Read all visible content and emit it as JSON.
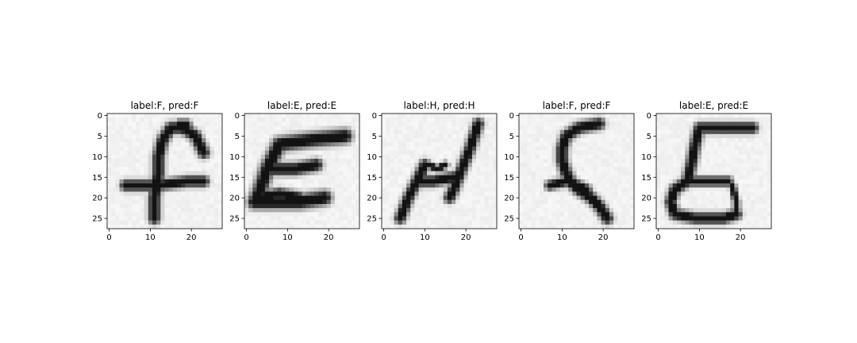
{
  "chart_data": [
    {
      "type": "heatmap",
      "title": "label:F, pred:F",
      "label": "F",
      "pred": "F",
      "xticks": [
        0,
        10,
        20
      ],
      "yticks": [
        0,
        5,
        10,
        15,
        20,
        25
      ],
      "xlim": [
        -0.5,
        27.5
      ],
      "ylim": [
        27.5,
        -0.5
      ],
      "colormap": "gray_r",
      "strokes": [
        {
          "points": [
            [
              4,
              17
            ],
            [
              12,
              17
            ],
            [
              19,
              16
            ],
            [
              23,
              16
            ]
          ],
          "width": 1.6
        },
        {
          "points": [
            [
              11,
              25
            ],
            [
              11,
              20
            ],
            [
              12,
              14
            ],
            [
              12,
              10
            ],
            [
              13,
              6
            ],
            [
              15,
              3
            ],
            [
              18,
              3
            ],
            [
              21,
              5
            ],
            [
              23,
              9
            ]
          ],
          "width": 1.7
        },
        {
          "points": [
            [
              17,
              2
            ],
            [
              19,
              2
            ]
          ],
          "width": 1.2
        }
      ]
    },
    {
      "type": "heatmap",
      "title": "label:E, pred:E",
      "label": "E",
      "pred": "E",
      "xticks": [
        0,
        10,
        20
      ],
      "yticks": [
        0,
        5,
        10,
        15,
        20,
        25
      ],
      "xlim": [
        -0.5,
        27.5
      ],
      "ylim": [
        27.5,
        -0.5
      ],
      "colormap": "gray_r",
      "strokes": [
        {
          "points": [
            [
              24,
              5
            ],
            [
              15,
              6
            ],
            [
              8,
              7
            ],
            [
              5,
              13
            ],
            [
              3,
              19
            ],
            [
              2,
              21
            ],
            [
              6,
              21
            ],
            [
              13,
              21
            ],
            [
              19,
              20
            ]
          ],
          "width": 2.1
        },
        {
          "points": [
            [
              6,
              13
            ],
            [
              12,
              13
            ],
            [
              17,
              12
            ]
          ],
          "width": 1.8
        },
        {
          "points": [
            [
              3,
              20
            ],
            [
              8,
              19
            ],
            [
              13,
              20
            ]
          ],
          "width": 1.6
        }
      ]
    },
    {
      "type": "heatmap",
      "title": "label:H, pred:H",
      "label": "H",
      "pred": "H",
      "xticks": [
        0,
        10,
        20
      ],
      "yticks": [
        0,
        5,
        10,
        15,
        20,
        25
      ],
      "xlim": [
        -0.5,
        27.5
      ],
      "ylim": [
        27.5,
        -0.5
      ],
      "colormap": "gray_r",
      "strokes": [
        {
          "points": [
            [
              4,
              25
            ],
            [
              6,
              20
            ],
            [
              8,
              16
            ],
            [
              10,
              12
            ]
          ],
          "width": 1.6
        },
        {
          "points": [
            [
              8,
              16
            ],
            [
              12,
              16
            ],
            [
              17,
              15
            ]
          ],
          "width": 1.6
        },
        {
          "points": [
            [
              23,
              2
            ],
            [
              21,
              8
            ],
            [
              19,
              13
            ],
            [
              17,
              18
            ],
            [
              16,
              20
            ]
          ],
          "width": 1.6
        },
        {
          "points": [
            [
              11,
              12
            ],
            [
              13,
              13
            ],
            [
              15,
              12
            ]
          ],
          "width": 1.0
        }
      ]
    },
    {
      "type": "heatmap",
      "title": "label:F, pred:F",
      "label": "F",
      "pred": "F",
      "xticks": [
        0,
        10,
        20
      ],
      "yticks": [
        0,
        5,
        10,
        15,
        20,
        25
      ],
      "xlim": [
        -0.5,
        27.5
      ],
      "ylim": [
        27.5,
        -0.5
      ],
      "colormap": "gray_r",
      "strokes": [
        {
          "points": [
            [
              19,
              2
            ],
            [
              14,
              3
            ],
            [
              11,
              5
            ],
            [
              10,
              8
            ],
            [
              10,
              11
            ],
            [
              11,
              14
            ],
            [
              12,
              16
            ],
            [
              14,
              18
            ],
            [
              17,
              20
            ],
            [
              19,
              22
            ],
            [
              21,
              25
            ]
          ],
          "width": 1.7
        },
        {
          "points": [
            [
              7,
              17
            ],
            [
              11,
              16
            ],
            [
              14,
              17
            ],
            [
              16,
              18
            ]
          ],
          "width": 1.4
        }
      ]
    },
    {
      "type": "heatmap",
      "title": "label:E, pred:E",
      "label": "E",
      "pred": "E",
      "xticks": [
        0,
        10,
        20
      ],
      "yticks": [
        0,
        5,
        10,
        15,
        20,
        25
      ],
      "xlim": [
        -0.5,
        27.5
      ],
      "ylim": [
        27.5,
        -0.5
      ],
      "colormap": "gray_r",
      "strokes": [
        {
          "points": [
            [
              23,
              3
            ],
            [
              16,
              3
            ],
            [
              10,
              3
            ],
            [
              9,
              7
            ],
            [
              8,
              12
            ],
            [
              7,
              16
            ],
            [
              4,
              18
            ],
            [
              3,
              21
            ],
            [
              4,
              24
            ],
            [
              9,
              25
            ],
            [
              16,
              25
            ],
            [
              19,
              24
            ]
          ],
          "width": 1.6
        },
        {
          "points": [
            [
              7,
              16
            ],
            [
              12,
              16
            ],
            [
              17,
              16
            ]
          ],
          "width": 1.4
        },
        {
          "points": [
            [
              18,
              17
            ],
            [
              19,
              21
            ],
            [
              19,
              24
            ]
          ],
          "width": 1.0
        }
      ]
    }
  ]
}
